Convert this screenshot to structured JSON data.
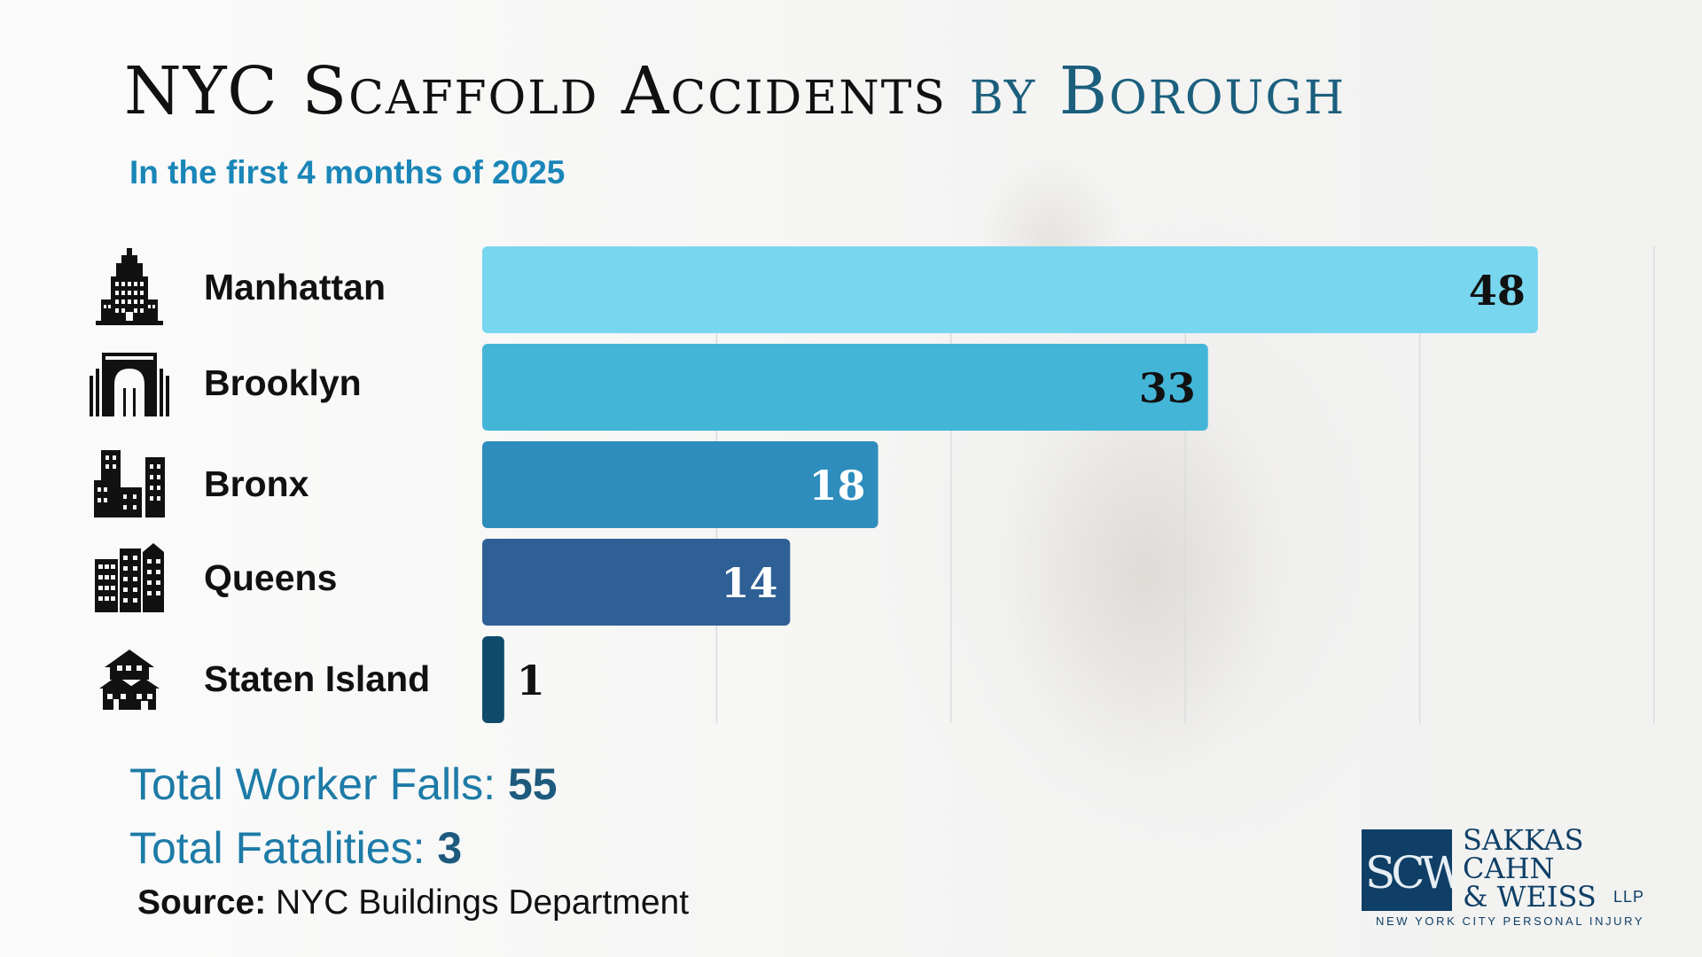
{
  "title": {
    "main": "NYC Scaffold Accidents",
    "accent": "by Borough"
  },
  "subtitle": "In the first 4 months of 2025",
  "chart_data": {
    "type": "bar",
    "orientation": "horizontal",
    "title": "NYC Scaffold Accidents by Borough",
    "subtitle": "In the first 4 months of 2025",
    "categories": [
      "Manhattan",
      "Brooklyn",
      "Bronx",
      "Queens",
      "Staten Island"
    ],
    "values": [
      48,
      33,
      18,
      14,
      1
    ],
    "bar_colors": [
      "#78d6ef",
      "#43b6d8",
      "#2e8dbd",
      "#2e6096",
      "#0f4a6c"
    ],
    "value_label_colors": [
      "#111111",
      "#111111",
      "#ffffff",
      "#ffffff",
      "#111111"
    ],
    "icons": [
      "skyscraper-icon",
      "bridge-icon",
      "apartment-blocks-icon",
      "city-buildings-icon",
      "houses-icon"
    ],
    "xlim": [
      0,
      50
    ],
    "grid": true,
    "legend": "none"
  },
  "stats": {
    "falls_label": "Total Worker Falls:",
    "falls_value": "55",
    "fatalities_label": "Total Fatalities:",
    "fatalities_value": "3"
  },
  "source": {
    "label": "Source:",
    "text": "NYC Buildings Department"
  },
  "logo": {
    "mark": "SCW",
    "line1": "SAKKAS",
    "line2": "CAHN",
    "line3": "& WEISS",
    "suffix": "LLP",
    "tagline": "NEW YORK CITY PERSONAL INJURY"
  },
  "colors": {
    "title_accent": "#1b5f7d",
    "subtitle": "#1a86b8",
    "stat_text": "#1d7ba7",
    "brand": "#0f3f66"
  }
}
